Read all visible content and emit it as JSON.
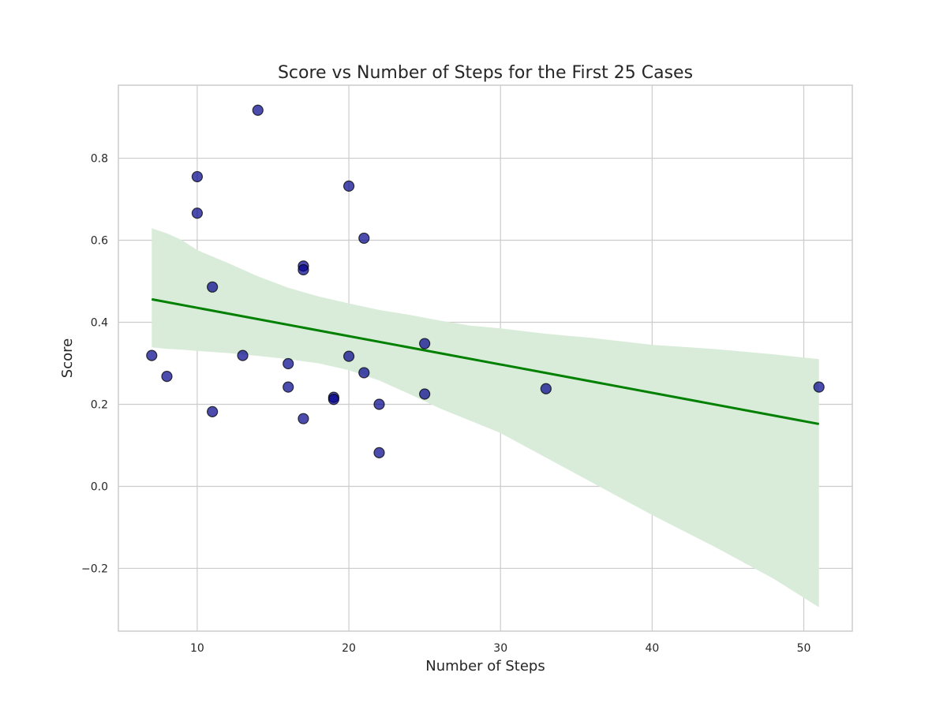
{
  "chart_data": {
    "type": "scatter",
    "title": "Score vs Number of Steps for the First 25 Cases",
    "xlabel": "Number of Steps",
    "ylabel": "Score",
    "xlim": [
      4.8,
      53.2
    ],
    "ylim": [
      -0.353,
      0.978
    ],
    "xticks": [
      10,
      20,
      30,
      40,
      50
    ],
    "yticks": [
      -0.2,
      0.0,
      0.2,
      0.4,
      0.6,
      0.8
    ],
    "xtick_labels": [
      "10",
      "20",
      "30",
      "40",
      "50"
    ],
    "ytick_labels": [
      "−0.2",
      "0.0",
      "0.2",
      "0.4",
      "0.6",
      "0.8"
    ],
    "grid": true,
    "points": [
      {
        "x": 14,
        "y": 0.917
      },
      {
        "x": 10,
        "y": 0.755
      },
      {
        "x": 20,
        "y": 0.732
      },
      {
        "x": 10,
        "y": 0.666
      },
      {
        "x": 21,
        "y": 0.605
      },
      {
        "x": 17,
        "y": 0.537
      },
      {
        "x": 17,
        "y": 0.528
      },
      {
        "x": 11,
        "y": 0.486
      },
      {
        "x": 25,
        "y": 0.348
      },
      {
        "x": 7,
        "y": 0.319
      },
      {
        "x": 13,
        "y": 0.319
      },
      {
        "x": 20,
        "y": 0.317
      },
      {
        "x": 16,
        "y": 0.299
      },
      {
        "x": 21,
        "y": 0.277
      },
      {
        "x": 8,
        "y": 0.268
      },
      {
        "x": 16,
        "y": 0.242
      },
      {
        "x": 51,
        "y": 0.242
      },
      {
        "x": 33,
        "y": 0.238
      },
      {
        "x": 25,
        "y": 0.225
      },
      {
        "x": 19,
        "y": 0.217
      },
      {
        "x": 19,
        "y": 0.212
      },
      {
        "x": 22,
        "y": 0.2
      },
      {
        "x": 11,
        "y": 0.182
      },
      {
        "x": 17,
        "y": 0.165
      },
      {
        "x": 22,
        "y": 0.082
      }
    ],
    "regression_line": {
      "x": [
        7,
        51
      ],
      "y": [
        0.456,
        0.152
      ]
    },
    "confidence_band": {
      "x": [
        7,
        8,
        9,
        10,
        12,
        14,
        16,
        18,
        20,
        22,
        24,
        26,
        28,
        30,
        33,
        36,
        40,
        44,
        48,
        51
      ],
      "upper": [
        0.629,
        0.617,
        0.6,
        0.576,
        0.545,
        0.512,
        0.484,
        0.463,
        0.446,
        0.43,
        0.418,
        0.404,
        0.392,
        0.385,
        0.372,
        0.362,
        0.345,
        0.335,
        0.322,
        0.31
      ],
      "lower": [
        0.339,
        0.335,
        0.333,
        0.33,
        0.325,
        0.318,
        0.31,
        0.3,
        0.283,
        0.258,
        0.225,
        0.19,
        0.16,
        0.13,
        0.07,
        0.01,
        -0.07,
        -0.145,
        -0.225,
        -0.295
      ]
    },
    "colors": {
      "points": "#00008b",
      "regression": "#008000",
      "band": "#d9ecd9"
    }
  }
}
